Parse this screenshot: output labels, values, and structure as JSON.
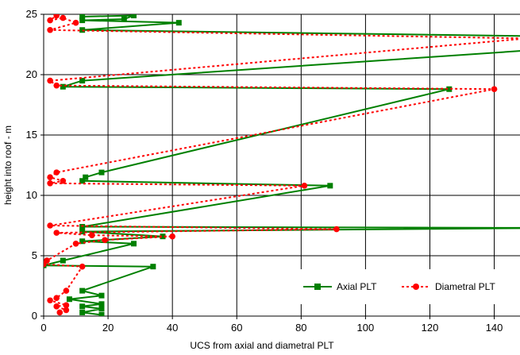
{
  "chart_data": {
    "type": "line",
    "title": "",
    "xlabel": "UCS from axial and diametral PLT",
    "ylabel": "height into roof - m",
    "xlim": [
      0,
      148
    ],
    "ylim": [
      0,
      25
    ],
    "x_ticks": [
      0,
      20,
      40,
      60,
      80,
      100,
      120,
      140
    ],
    "y_ticks": [
      0,
      5,
      10,
      15,
      20,
      25
    ],
    "grid": "vertical and horizontal major gridlines",
    "legend_position": "bottom-right",
    "series": [
      {
        "name": "Axial PLT",
        "color": "#008000",
        "line_style": "solid",
        "marker": "square",
        "points": [
          [
            18,
            0.1
          ],
          [
            12,
            0.3
          ],
          [
            18,
            0.6
          ],
          [
            12,
            0.8
          ],
          [
            18,
            1.0
          ],
          [
            8,
            1.4
          ],
          [
            18,
            1.7
          ],
          [
            12,
            2.1
          ],
          [
            34,
            4.1
          ],
          [
            0,
            4.2
          ],
          [
            6,
            4.6
          ],
          [
            28,
            6.0
          ],
          [
            12,
            6.2
          ],
          [
            37,
            6.6
          ],
          [
            12,
            7.0
          ],
          [
            160,
            7.3
          ],
          [
            12,
            7.4
          ],
          [
            89,
            10.8
          ],
          [
            12,
            11.2
          ],
          [
            13,
            11.5
          ],
          [
            18,
            11.9
          ],
          [
            126,
            18.8
          ],
          [
            6,
            19.0
          ],
          [
            12,
            19.5
          ],
          [
            150,
            22.0
          ],
          [
            150,
            23.2
          ],
          [
            12,
            23.7
          ],
          [
            42,
            24.3
          ],
          [
            12,
            24.5
          ],
          [
            25,
            24.6
          ],
          [
            28,
            24.9
          ],
          [
            12,
            24.8
          ]
        ]
      },
      {
        "name": "Diametral PLT",
        "color": "#ff0000",
        "line_style": "dotted",
        "marker": "circle",
        "points": [
          [
            5,
            0.3
          ],
          [
            7,
            0.5
          ],
          [
            4,
            0.8
          ],
          [
            7,
            0.9
          ],
          [
            2,
            1.3
          ],
          [
            4,
            1.5
          ],
          [
            7,
            2.1
          ],
          [
            12,
            4.1
          ],
          [
            0,
            4.3
          ],
          [
            1,
            4.6
          ],
          [
            10,
            6.0
          ],
          [
            19,
            6.3
          ],
          [
            40,
            6.6
          ],
          [
            15,
            6.7
          ],
          [
            4,
            6.9
          ],
          [
            91,
            7.2
          ],
          [
            2,
            7.5
          ],
          [
            81,
            10.8
          ],
          [
            2,
            11.0
          ],
          [
            6,
            11.2
          ],
          [
            2,
            11.5
          ],
          [
            4,
            11.9
          ],
          [
            140,
            18.8
          ],
          [
            4,
            19.1
          ],
          [
            2,
            19.5
          ],
          [
            150,
            23.0
          ],
          [
            2,
            23.7
          ],
          [
            10,
            24.3
          ],
          [
            6,
            24.7
          ],
          [
            2,
            24.5
          ],
          [
            4,
            24.9
          ]
        ]
      }
    ]
  }
}
